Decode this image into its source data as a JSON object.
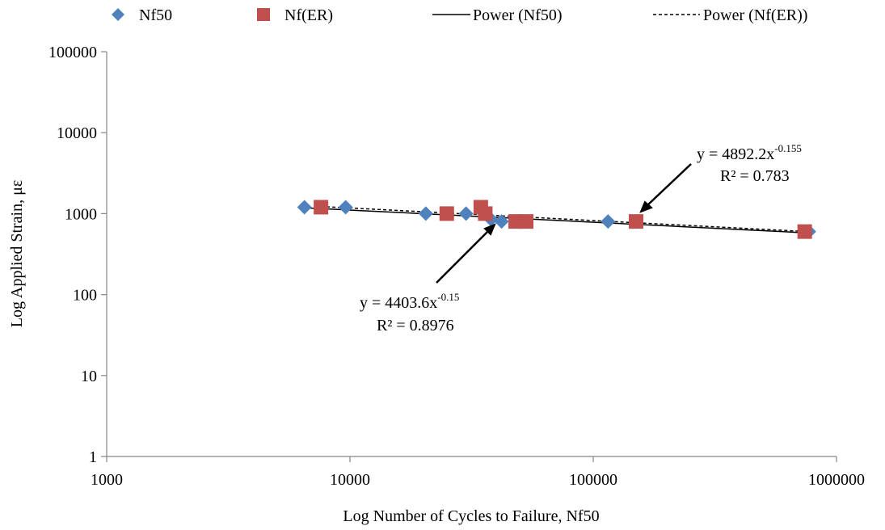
{
  "chart_data": {
    "type": "scatter",
    "title": "",
    "xlabel": "Log Number of Cycles to Failure, Nf50",
    "ylabel": "Log Applied Strain, με",
    "x_scale": "log",
    "y_scale": "log",
    "xlim": [
      1000,
      1000000
    ],
    "ylim": [
      1,
      100000
    ],
    "x_ticks": [
      "1000",
      "10000",
      "100000",
      "1000000"
    ],
    "y_ticks": [
      "1",
      "10",
      "100",
      "1000",
      "10000",
      "100000"
    ],
    "grid": false,
    "legend_position": "top",
    "legend": [
      "Nf50",
      "Nf(ER)",
      "Power (Nf50)",
      "Power (Nf(ER))"
    ],
    "colors": {
      "nf50": "#4f81bd",
      "nfer": "#c0504d",
      "axis": "#868686"
    },
    "series": [
      {
        "name": "Nf50",
        "marker": "diamond",
        "points": [
          {
            "x": 6500,
            "y": 1200
          },
          {
            "x": 9600,
            "y": 1200
          },
          {
            "x": 20500,
            "y": 1000
          },
          {
            "x": 30000,
            "y": 1000
          },
          {
            "x": 38000,
            "y": 850
          },
          {
            "x": 42000,
            "y": 800
          },
          {
            "x": 115000,
            "y": 800
          },
          {
            "x": 770000,
            "y": 600
          }
        ]
      },
      {
        "name": "Nf(ER)",
        "marker": "square",
        "points": [
          {
            "x": 7600,
            "y": 1200
          },
          {
            "x": 25000,
            "y": 1000
          },
          {
            "x": 34500,
            "y": 1200
          },
          {
            "x": 36000,
            "y": 1000
          },
          {
            "x": 48000,
            "y": 800
          },
          {
            "x": 53000,
            "y": 800
          },
          {
            "x": 150000,
            "y": 800
          },
          {
            "x": 740000,
            "y": 600
          }
        ]
      }
    ],
    "trendlines": [
      {
        "name": "Power (Nf50)",
        "type": "power",
        "coef": 4403.6,
        "exp": -0.15,
        "x_range": [
          6500,
          770000
        ],
        "style": "solid"
      },
      {
        "name": "Power (Nf(ER))",
        "type": "power",
        "coef": 4892.2,
        "exp": -0.155,
        "x_range": [
          7600,
          740000
        ],
        "style": "dashed"
      }
    ],
    "annotations": [
      {
        "prefix": "y = 4403.6x",
        "exponent": "-0.15",
        "r2": "R² = 0.8976"
      },
      {
        "prefix": "y = 4892.2x",
        "exponent": "-0.155",
        "r2": "R² = 0.783"
      }
    ]
  }
}
